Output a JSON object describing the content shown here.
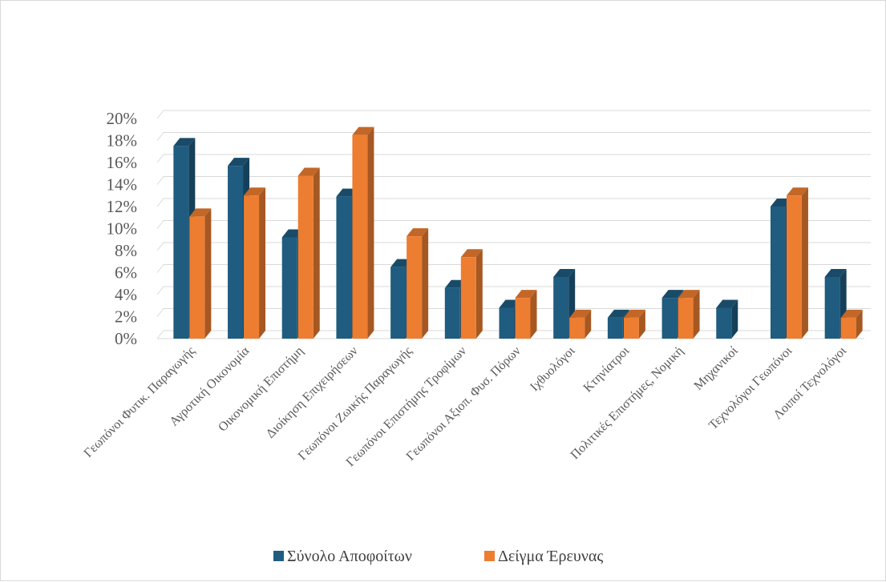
{
  "chart_data": {
    "type": "bar",
    "style": "3d-clustered",
    "categories": [
      "Γεωπόνοι Φυτικ. Παραγωγής",
      "Αγροτική Οικονομία",
      "Οικονομική Επιστήμη",
      "Διοίκηση Επιχειρήσεων",
      "Γεωπόνοι Ζωικής Παραγωγής",
      "Γεωπόνοι Επιστήμης Τροφίμων",
      "Γεωπόνοι Αξιοπ. Φυσ. Πόρων",
      "Ιχθυολόγοι",
      "Κτηνίατροι",
      "Πολιτικές Επιστήμες, Νομική",
      "Μηχανικοί",
      "Τεχνολόγοι Γεωπόνοι",
      "Λοιποί Τεχνολόγοι"
    ],
    "series": [
      {
        "name": "Σύνολο Αποφοίτων",
        "color": "#1f5c80",
        "values": [
          17.5,
          15.7,
          9.2,
          12.9,
          6.5,
          4.6,
          2.8,
          5.6,
          1.9,
          3.7,
          2.8,
          12.0,
          5.6
        ]
      },
      {
        "name": "Δείγμα Έρευνας",
        "color": "#ed7d31",
        "values": [
          11.1,
          13.0,
          14.8,
          18.5,
          9.3,
          7.4,
          3.7,
          1.9,
          1.9,
          3.7,
          0,
          13.0,
          1.9
        ]
      }
    ],
    "ytick_labels": [
      "0%",
      "2%",
      "4%",
      "6%",
      "8%",
      "10%",
      "12%",
      "14%",
      "16%",
      "18%",
      "20%"
    ],
    "ylim": [
      0,
      20
    ],
    "grid": true,
    "legend_position": "bottom"
  }
}
